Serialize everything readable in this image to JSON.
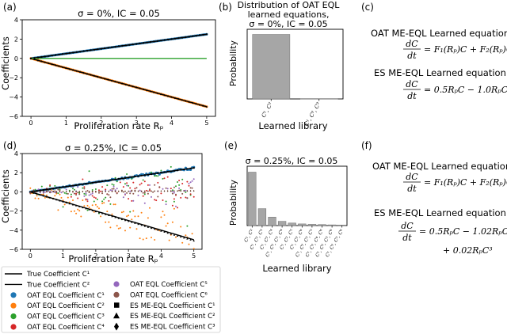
{
  "colors": {
    "true_line": "#000000",
    "c1": "#1f77b4",
    "c2": "#ff7f0e",
    "c3": "#2ca02c",
    "c4": "#d62728",
    "c5": "#9467bd",
    "c6": "#8c564b",
    "bar": "#a6a6a6"
  },
  "panels": {
    "a": {
      "letter": "(a)",
      "title": "σ = 0%,  IC = 0.05"
    },
    "b": {
      "letter": "(b)",
      "title1": "Distribution of OAT EQL",
      "title2": "learned equations,",
      "title3": "σ = 0%,  IC = 0.05"
    },
    "c": {
      "letter": "(c)",
      "oat_header": "OAT ME-EQL Learned equation:",
      "oat_rhs": "= F₁(Rₚ)C + F₂(Rₚ)C²",
      "es_header": "ES ME-EQL Learned equation:",
      "es_rhs": "= 0.5RₚC − 1.0RₚC²"
    },
    "d": {
      "letter": "(d)",
      "title": "σ = 0.25%,  IC = 0.05"
    },
    "e": {
      "letter": "(e)",
      "title": "σ = 0.25%,  IC = 0.05"
    },
    "f": {
      "letter": "(f)",
      "oat_header": "OAT ME-EQL Learned equation:",
      "oat_rhs": "= F₁(Rₚ)C + F₂(Rₚ)C²",
      "es_header": "ES ME-EQL Learned equation:",
      "es_rhs1": "= 0.5RₚC − 1.02RₚC²",
      "es_rhs2": "+ 0.02RₚC³"
    },
    "deriv_num": "dC",
    "deriv_den": "dt"
  },
  "legend": {
    "items": [
      {
        "label": "True Coefficient C¹",
        "marker": "line"
      },
      {
        "label": "True Coefficient C²",
        "marker": "line"
      },
      {
        "label": "OAT EQL Coefficient C¹",
        "marker": "dot",
        "color": "#1f77b4"
      },
      {
        "label": "OAT EQL Coefficient C²",
        "marker": "dot",
        "color": "#ff7f0e"
      },
      {
        "label": "OAT EQL Coefficient C³",
        "marker": "dot",
        "color": "#2ca02c"
      },
      {
        "label": "OAT EQL Coefficient C⁴",
        "marker": "dot",
        "color": "#d62728"
      },
      {
        "label": "OAT EQL Coefficient C⁵",
        "marker": "dot",
        "color": "#9467bd"
      },
      {
        "label": "OAT EQL Coefficient C⁶",
        "marker": "dot",
        "color": "#8c564b"
      },
      {
        "label": "ES ME-EQL Coefficient C¹",
        "marker": "square"
      },
      {
        "label": "ES ME-EQL Coefficient C²",
        "marker": "triangle"
      },
      {
        "label": "ES ME-EQL Coefficient C³",
        "marker": "diamond"
      }
    ]
  },
  "chart_data": [
    {
      "panel": "a",
      "type": "scatter",
      "title": "σ = 0%,  IC = 0.05",
      "xlabel": "Proliferation rate Rₚ",
      "ylabel": "Coefficients",
      "xlim": [
        -0.25,
        5.25
      ],
      "ylim": [
        -6,
        4
      ],
      "xticks": [
        0,
        1,
        2,
        3,
        4,
        5
      ],
      "yticks": [
        -6,
        -4,
        -2,
        0,
        2,
        4
      ],
      "series": [
        {
          "name": "True Coefficient C¹",
          "kind": "line",
          "x": [
            0,
            5
          ],
          "y": [
            0,
            2.5
          ]
        },
        {
          "name": "True Coefficient C²",
          "kind": "line",
          "x": [
            0,
            5
          ],
          "y": [
            0,
            -5
          ]
        },
        {
          "name": "OAT EQL Coefficient C¹",
          "slope": 0.5,
          "noise": 0
        },
        {
          "name": "OAT EQL Coefficient C²",
          "slope": -1.0,
          "noise": 0
        },
        {
          "name": "OAT EQL Coefficient C³",
          "kind": "line",
          "x": [
            0,
            5
          ],
          "y": [
            0,
            0
          ]
        },
        {
          "name": "ES ME-EQL Coefficient C¹",
          "slope": 0.5
        },
        {
          "name": "ES ME-EQL Coefficient C²",
          "slope": -1.0
        }
      ]
    },
    {
      "panel": "b",
      "type": "bar",
      "title": "Distribution of OAT EQL learned equations, σ = 0%,  IC = 0.05",
      "xlabel": "Learned library",
      "ylabel": "Probability",
      "categories": [
        "C¹, C²",
        "C¹, C², C³"
      ],
      "values": [
        1.0,
        0.005
      ],
      "ylim": [
        0,
        1.08
      ],
      "yticks": []
    },
    {
      "panel": "d",
      "type": "scatter",
      "title": "σ = 0.25%,  IC = 0.05",
      "xlabel": "Proliferation rate Rₚ",
      "ylabel": "Coefficients",
      "xlim": [
        -0.25,
        5.25
      ],
      "ylim": [
        -6,
        4
      ],
      "xticks": [
        0,
        1,
        2,
        3,
        4,
        5
      ],
      "yticks": [
        -6,
        -4,
        -2,
        0,
        2,
        4
      ],
      "series": [
        {
          "name": "True Coefficient C¹",
          "kind": "line",
          "x": [
            0,
            5
          ],
          "y": [
            0,
            2.5
          ]
        },
        {
          "name": "True Coefficient C²",
          "kind": "line",
          "x": [
            0,
            5
          ],
          "y": [
            0,
            -5
          ]
        },
        {
          "name": "OAT EQL Coefficient C¹",
          "slope": 0.5,
          "noise": 0.05
        },
        {
          "name": "OAT EQL Coefficient C²",
          "slope": -1.0,
          "noise": 1.0
        },
        {
          "name": "OAT EQL Coefficient C³",
          "slope": 0.0,
          "noise": 1.6
        },
        {
          "name": "OAT EQL Coefficient C⁴",
          "slope": 0.0,
          "noise": 0.8
        },
        {
          "name": "OAT EQL Coefficient C⁵",
          "slope": 0.0,
          "noise": 0.6
        },
        {
          "name": "OAT EQL Coefficient C⁶",
          "slope": 0.0,
          "noise": 0.4
        },
        {
          "name": "ES ME-EQL Coefficient C¹",
          "slope": 0.5
        },
        {
          "name": "ES ME-EQL Coefficient C²",
          "slope": -1.02
        },
        {
          "name": "ES ME-EQL Coefficient C³",
          "slope": 0.02
        }
      ]
    },
    {
      "panel": "e",
      "type": "bar",
      "title": "σ = 0.25%,  IC = 0.05",
      "xlabel": "Learned library",
      "ylabel": "Probability",
      "categories": [
        "C¹, C²",
        "C¹, C², C³",
        "C¹, C², C⁴",
        "C¹, C², C³, C⁴",
        "C¹, C², C⁵",
        "C¹, C², C⁶",
        "C¹, C², C³, C⁵",
        "C¹, C², C⁴, C⁶",
        "C¹, C², C³, C⁶",
        "C¹, C², C⁵, C⁶"
      ],
      "values": [
        0.63,
        0.2,
        0.1,
        0.05,
        0.03,
        0.02,
        0.015,
        0.012,
        0.008,
        0.006
      ],
      "ylim": [
        0,
        0.7
      ],
      "yticks": []
    }
  ]
}
